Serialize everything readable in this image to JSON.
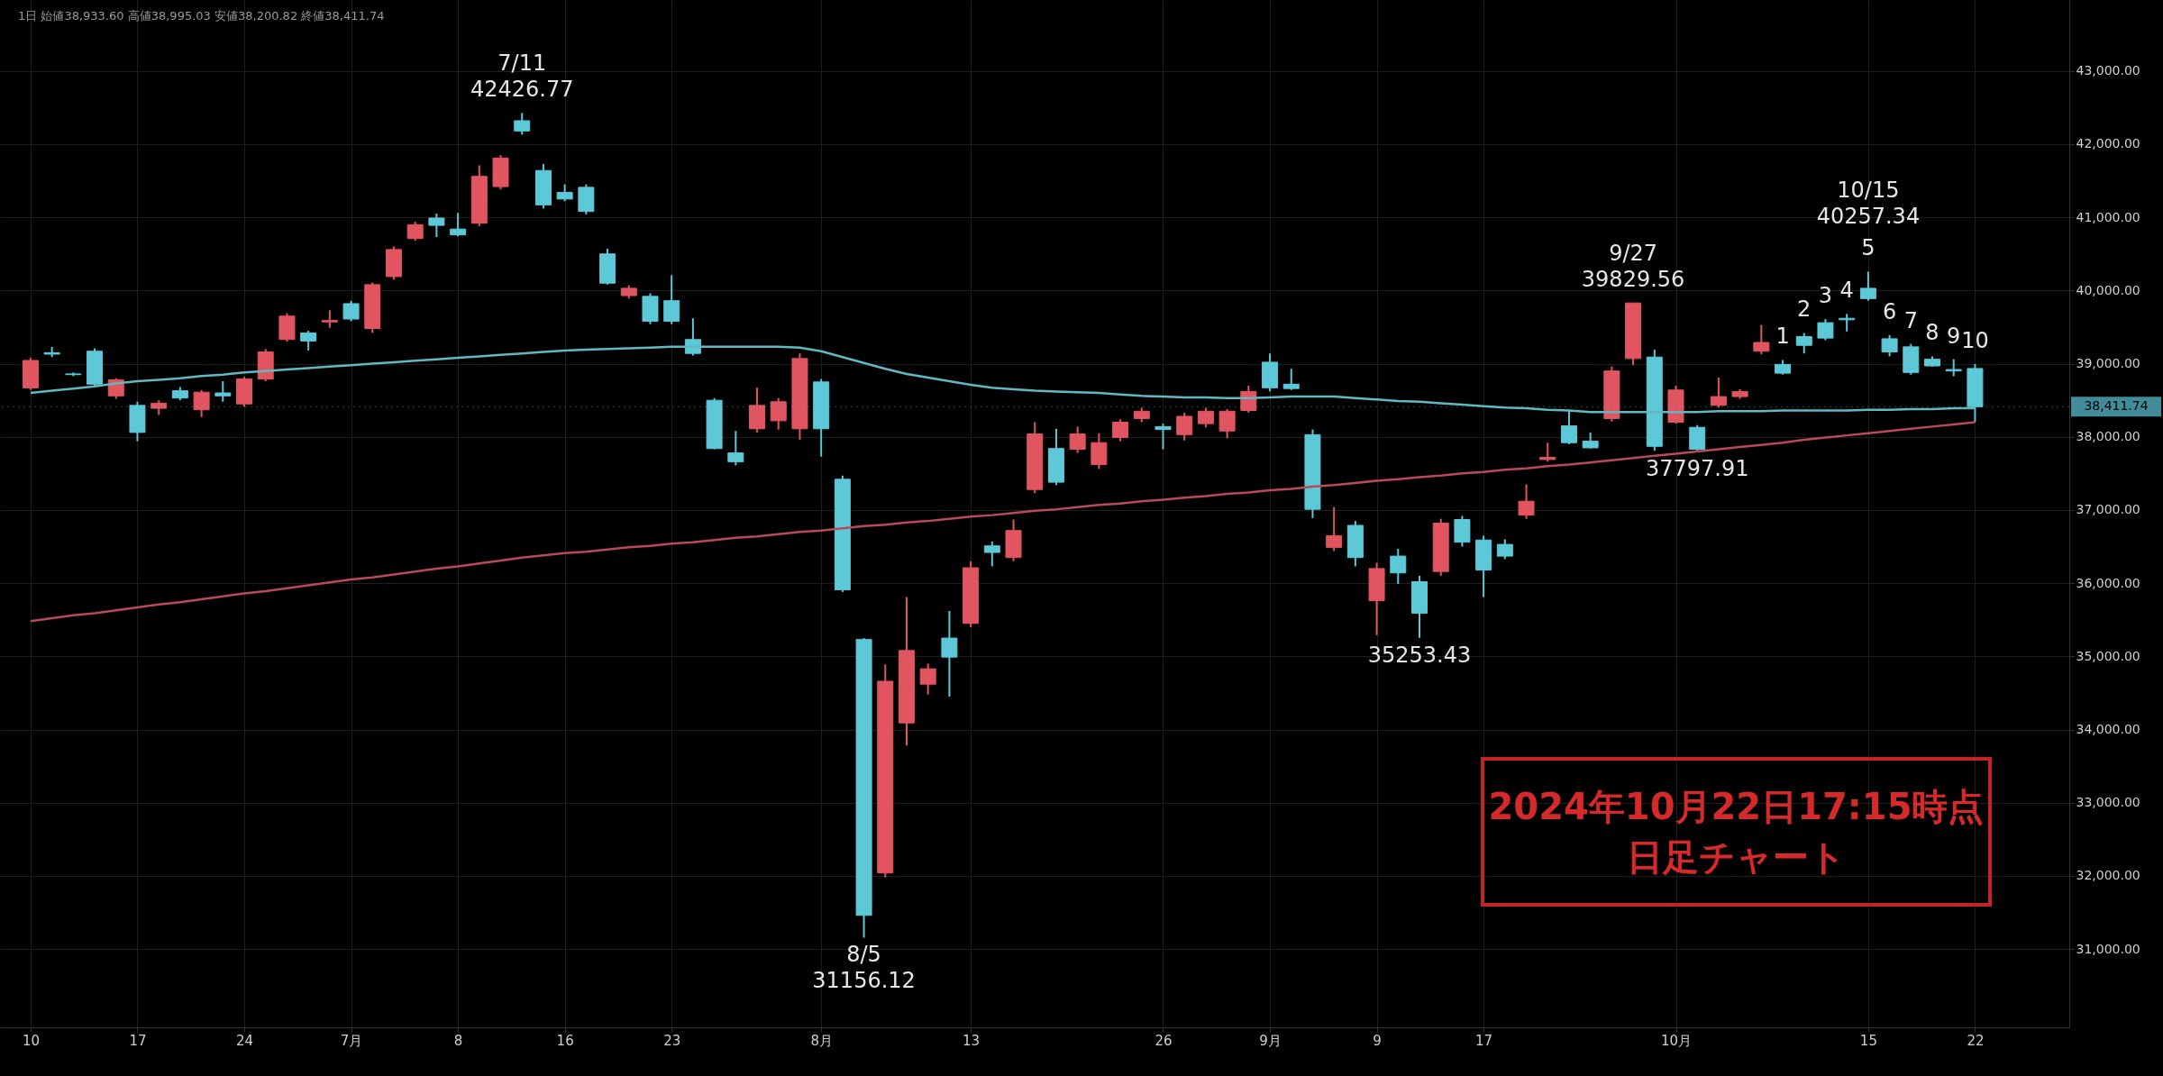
{
  "chart_data": {
    "type": "candlestick",
    "categories": [
      "10",
      null,
      null,
      null,
      null,
      "17",
      null,
      null,
      null,
      null,
      "24",
      null,
      null,
      null,
      null,
      "7月",
      null,
      null,
      null,
      null,
      "8",
      null,
      null,
      null,
      null,
      "16",
      null,
      null,
      null,
      null,
      "23",
      null,
      null,
      null,
      null,
      null,
      null,
      "8月",
      null,
      null,
      null,
      null,
      null,
      null,
      "13",
      null,
      null,
      null,
      null,
      null,
      null,
      null,
      null,
      "26",
      null,
      null,
      null,
      null,
      "9月",
      null,
      null,
      null,
      null,
      "9",
      null,
      null,
      null,
      null,
      "17",
      null,
      null,
      null,
      null,
      null,
      null,
      null,
      null,
      "10月",
      null,
      null,
      null,
      null,
      null,
      null,
      null,
      null,
      "15",
      null,
      null,
      null,
      null,
      "22"
    ],
    "ohlc": [
      [
        38669,
        39080,
        38640,
        39044
      ],
      [
        39150,
        39230,
        39090,
        39130
      ],
      [
        38860,
        38880,
        38830,
        38850
      ],
      [
        39170,
        39210,
        38700,
        38720
      ],
      [
        38560,
        38800,
        38520,
        38780
      ],
      [
        38430,
        38480,
        37940,
        38060
      ],
      [
        38390,
        38500,
        38300,
        38460
      ],
      [
        38630,
        38680,
        38500,
        38530
      ],
      [
        38370,
        38640,
        38270,
        38610
      ],
      [
        38600,
        38760,
        38480,
        38560
      ],
      [
        38450,
        38820,
        38410,
        38790
      ],
      [
        38790,
        39200,
        38760,
        39160
      ],
      [
        39330,
        39690,
        39300,
        39650
      ],
      [
        39420,
        39450,
        39180,
        39310
      ],
      [
        39570,
        39730,
        39490,
        39590
      ],
      [
        39820,
        39860,
        39580,
        39610
      ],
      [
        39480,
        40110,
        39420,
        40080
      ],
      [
        40190,
        40600,
        40150,
        40560
      ],
      [
        40710,
        40940,
        40680,
        40900
      ],
      [
        40990,
        41050,
        40730,
        40890
      ],
      [
        40840,
        41060,
        40740,
        40760
      ],
      [
        40920,
        41710,
        40880,
        41560
      ],
      [
        41420,
        41850,
        41380,
        41810
      ],
      [
        42320,
        42426.77,
        42130,
        42180
      ],
      [
        41640,
        41730,
        41120,
        41170
      ],
      [
        41340,
        41450,
        41220,
        41250
      ],
      [
        41410,
        41450,
        41040,
        41080
      ],
      [
        40500,
        40570,
        40080,
        40100
      ],
      [
        39930,
        40070,
        39890,
        40030
      ],
      [
        39920,
        39960,
        39540,
        39580
      ],
      [
        39860,
        40210,
        39540,
        39580
      ],
      [
        39330,
        39620,
        39110,
        39140
      ],
      [
        38500,
        38530,
        37830,
        37840
      ],
      [
        37780,
        38080,
        37610,
        37660
      ],
      [
        38110,
        38670,
        38060,
        38430
      ],
      [
        38220,
        38530,
        38100,
        38480
      ],
      [
        38110,
        39140,
        37960,
        39070
      ],
      [
        38750,
        38790,
        37730,
        38110
      ],
      [
        37420,
        37470,
        35880,
        35910
      ],
      [
        35230,
        35250,
        31156.12,
        31460
      ],
      [
        32040,
        34890,
        31980,
        34660
      ],
      [
        34090,
        35810,
        33780,
        35080
      ],
      [
        34620,
        34900,
        34480,
        34830
      ],
      [
        35250,
        35620,
        34450,
        34990
      ],
      [
        35450,
        36300,
        35400,
        36210
      ],
      [
        36510,
        36570,
        36230,
        36420
      ],
      [
        36350,
        36870,
        36300,
        36720
      ],
      [
        37280,
        38200,
        37230,
        38040
      ],
      [
        37840,
        38110,
        37340,
        37380
      ],
      [
        37830,
        38140,
        37780,
        38040
      ],
      [
        37620,
        38050,
        37560,
        37920
      ],
      [
        37990,
        38240,
        37940,
        38200
      ],
      [
        38250,
        38400,
        38200,
        38350
      ],
      [
        38140,
        38180,
        37830,
        38100
      ],
      [
        38030,
        38330,
        37950,
        38280
      ],
      [
        38180,
        38400,
        38130,
        38350
      ],
      [
        38080,
        38380,
        37980,
        38350
      ],
      [
        38360,
        38700,
        38330,
        38620
      ],
      [
        39020,
        39140,
        38620,
        38670
      ],
      [
        38720,
        38930,
        38640,
        38660
      ],
      [
        38030,
        38100,
        36890,
        37010
      ],
      [
        36490,
        37040,
        36440,
        36650
      ],
      [
        36790,
        36850,
        36230,
        36350
      ],
      [
        35760,
        36280,
        35290,
        36200
      ],
      [
        36370,
        36470,
        35990,
        36140
      ],
      [
        36020,
        36100,
        35253.43,
        35590
      ],
      [
        36160,
        36880,
        36100,
        36820
      ],
      [
        36870,
        36920,
        36500,
        36560
      ],
      [
        36590,
        36650,
        35810,
        36180
      ],
      [
        36530,
        36600,
        36330,
        36370
      ],
      [
        36930,
        37350,
        36880,
        37120
      ],
      [
        37690,
        37920,
        37660,
        37720
      ],
      [
        38150,
        38360,
        37900,
        37920
      ],
      [
        37940,
        38060,
        37840,
        37850
      ],
      [
        38250,
        38960,
        38210,
        38900
      ],
      [
        39070,
        39829.56,
        38980,
        39829.56
      ],
      [
        39090,
        39190,
        37810,
        37870
      ],
      [
        38200,
        38700,
        38180,
        38640
      ],
      [
        38130,
        38160,
        37797.91,
        37830
      ],
      [
        38430,
        38810,
        38400,
        38550
      ],
      [
        38550,
        38650,
        38520,
        38620
      ],
      [
        39170,
        39530,
        39130,
        39290
      ],
      [
        38990,
        39050,
        38850,
        38870
      ],
      [
        39370,
        39420,
        39140,
        39250
      ],
      [
        39560,
        39610,
        39320,
        39350
      ],
      [
        39620,
        39680,
        39440,
        39600
      ],
      [
        40030,
        40257.34,
        39860,
        39890
      ],
      [
        39340,
        39390,
        39100,
        39160
      ],
      [
        39230,
        39270,
        38850,
        38880
      ],
      [
        39060,
        39100,
        38960,
        38970
      ],
      [
        38920,
        39060,
        38830,
        38900
      ],
      [
        38933.6,
        38995.03,
        38200.82,
        38411.74
      ]
    ],
    "colors": [
      "#e05560",
      "#5cc8d8",
      "#5cc8d8",
      "#5cc8d8",
      "#e05560",
      "#5cc8d8",
      "#e05560",
      "#5cc8d8",
      "#e05560",
      "#5cc8d8",
      "#e05560",
      "#e05560",
      "#e05560",
      "#5cc8d8",
      "#e05560",
      "#5cc8d8",
      "#e05560",
      "#e05560",
      "#e05560",
      "#5cc8d8",
      "#5cc8d8",
      "#e05560",
      "#e05560",
      "#5cc8d8",
      "#5cc8d8",
      "#5cc8d8",
      "#5cc8d8",
      "#5cc8d8",
      "#e05560",
      "#5cc8d8",
      "#5cc8d8",
      "#5cc8d8",
      "#5cc8d8",
      "#5cc8d8",
      "#e05560",
      "#e05560",
      "#e05560",
      "#5cc8d8",
      "#5cc8d8",
      "#5cc8d8",
      "#e05560",
      "#e05560",
      "#e05560",
      "#5cc8d8",
      "#e05560",
      "#5cc8d8",
      "#e05560",
      "#e05560",
      "#5cc8d8",
      "#e05560",
      "#e05560",
      "#e05560",
      "#e05560",
      "#5cc8d8",
      "#e05560",
      "#e05560",
      "#e05560",
      "#e05560",
      "#5cc8d8",
      "#5cc8d8",
      "#5cc8d8",
      "#e05560",
      "#5cc8d8",
      "#e05560",
      "#5cc8d8",
      "#5cc8d8",
      "#e05560",
      "#5cc8d8",
      "#5cc8d8",
      "#5cc8d8",
      "#e05560",
      "#e05560",
      "#5cc8d8",
      "#5cc8d8",
      "#e05560",
      "#e05560",
      "#5cc8d8",
      "#e05560",
      "#5cc8d8",
      "#e05560",
      "#e05560",
      "#e05560",
      "#5cc8d8",
      "#5cc8d8",
      "#5cc8d8",
      "#5cc8d8",
      "#5cc8d8",
      "#5cc8d8",
      "#5cc8d8",
      "#5cc8d8",
      "#5cc8d8",
      "#5cc8d8"
    ],
    "series": [
      {
        "type": "line",
        "color": "#62b8c0",
        "values": [
          38600,
          38630,
          38660,
          38690,
          38730,
          38760,
          38780,
          38800,
          38830,
          38850,
          38880,
          38900,
          38920,
          38940,
          38960,
          38980,
          39000,
          39020,
          39040,
          39060,
          39080,
          39100,
          39120,
          39140,
          39160,
          39180,
          39190,
          39200,
          39210,
          39220,
          39230,
          39230,
          39230,
          39230,
          39230,
          39230,
          39220,
          39170,
          39090,
          39010,
          38930,
          38860,
          38810,
          38760,
          38710,
          38670,
          38650,
          38630,
          38620,
          38610,
          38600,
          38580,
          38560,
          38550,
          38540,
          38540,
          38530,
          38530,
          38540,
          38550,
          38550,
          38550,
          38530,
          38510,
          38490,
          38480,
          38460,
          38440,
          38420,
          38400,
          38390,
          38370,
          38360,
          38340,
          38340,
          38340,
          38340,
          38340,
          38340,
          38350,
          38350,
          38350,
          38360,
          38360,
          38360,
          38360,
          38370,
          38370,
          38380,
          38380,
          38390,
          38390
        ]
      },
      {
        "type": "line",
        "color": "#b84a5a",
        "values": [
          35480,
          35520,
          35560,
          35590,
          35630,
          35670,
          35710,
          35740,
          35780,
          35820,
          35860,
          35890,
          35930,
          35970,
          36010,
          36050,
          36080,
          36120,
          36160,
          36200,
          36230,
          36270,
          36310,
          36350,
          36380,
          36410,
          36430,
          36460,
          36490,
          36510,
          36540,
          36560,
          36590,
          36620,
          36640,
          36670,
          36700,
          36720,
          36750,
          36780,
          36800,
          36830,
          36850,
          36880,
          36910,
          36930,
          36960,
          36990,
          37010,
          37040,
          37070,
          37090,
          37120,
          37140,
          37170,
          37190,
          37220,
          37240,
          37270,
          37290,
          37320,
          37340,
          37370,
          37400,
          37420,
          37450,
          37470,
          37500,
          37520,
          37550,
          37570,
          37600,
          37620,
          37650,
          37680,
          37710,
          37740,
          37770,
          37800,
          37830,
          37860,
          37890,
          37920,
          37960,
          37990,
          38020,
          38050,
          38080,
          38110,
          38140,
          38170,
          38200
        ]
      }
    ],
    "ylim": [
      29930,
      43970
    ],
    "yticks": [
      {
        "value": 31000,
        "label": "31,000.00"
      },
      {
        "value": 32000,
        "label": "32,000.00"
      },
      {
        "value": 33000,
        "label": "33,000.00"
      },
      {
        "value": 34000,
        "label": "34,000.00"
      },
      {
        "value": 35000,
        "label": "35,000.00"
      },
      {
        "value": 36000,
        "label": "36,000.00"
      },
      {
        "value": 37000,
        "label": "37,000.00"
      },
      {
        "value": 38000,
        "label": "38,000.00"
      },
      {
        "value": 39000,
        "label": "39,000.00"
      },
      {
        "value": 40000,
        "label": "40,000.00"
      },
      {
        "value": 41000,
        "label": "41,000.00"
      },
      {
        "value": 42000,
        "label": "42,000.00"
      },
      {
        "value": 43000,
        "label": "43,000.00"
      }
    ],
    "grid": true,
    "ref_lines": [
      {
        "axis": "y",
        "value": 38411.74,
        "label": "38,411.74",
        "color": "#5cc8d8"
      }
    ],
    "annotations": [
      "1日 始値38,933.60 高値38,995.03 安値38,200.82 終値38,411.74",
      "2024年10月22日17:15時点",
      "日足チャート",
      {
        "text": "7/11\n42426.77",
        "y": 42426.77
      },
      {
        "text": "8/5\n31156.12",
        "y": 31156.12
      },
      {
        "text": "35253.43",
        "y": 35253.43
      },
      {
        "text": "9/27\n39829.56",
        "y": 39829.56
      },
      {
        "text": "37797.91",
        "y": 37797.91
      },
      {
        "text": "1",
        "y": 39050
      },
      {
        "text": "2",
        "y": 39420
      },
      {
        "text": "3",
        "y": 39610
      },
      {
        "text": "4",
        "y": 39680
      },
      {
        "text": "5",
        "y": 40257.34
      },
      {
        "text": "10/15\n40257.34",
        "y": 40257.34
      },
      {
        "text": "6",
        "y": 39390
      },
      {
        "text": "7",
        "y": 39270
      },
      {
        "text": "8",
        "y": 39100
      },
      {
        "text": "9",
        "y": 39060
      },
      {
        "text": "10",
        "y": 38995.03
      }
    ]
  }
}
